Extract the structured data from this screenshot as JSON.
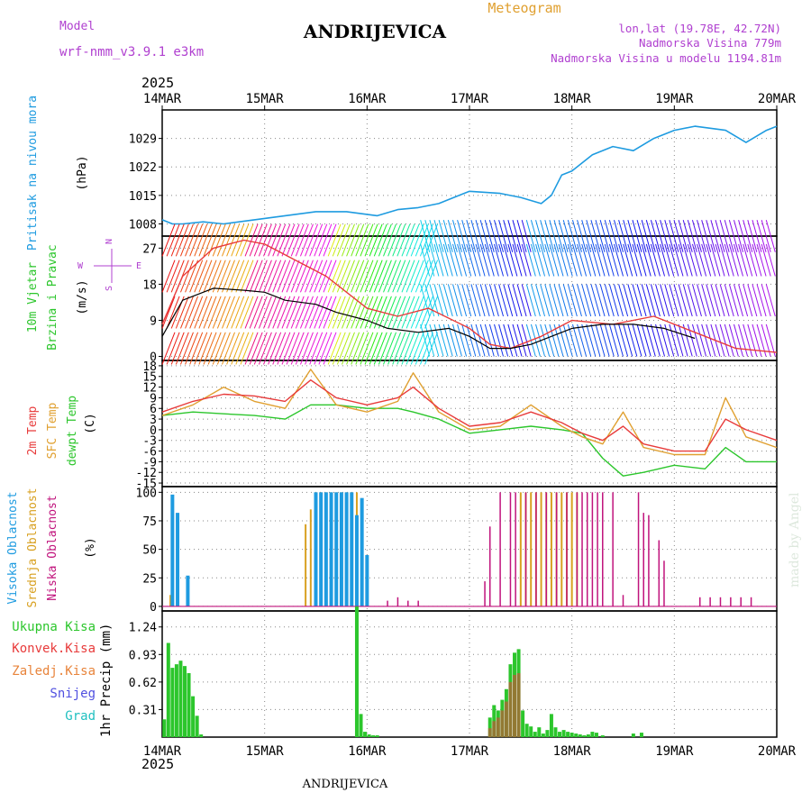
{
  "header": {
    "model_label": "Model",
    "model_name": "wrf-nmm_v3.9.1 e3km",
    "title": "ANDRIJEVICA",
    "meteogram": "Meteogram",
    "lonlat": "lon,lat (19.78E, 42.72N)",
    "elevation": "Nadmorska Visina 779m",
    "model_elevation": "Nadmorska Visina u modelu 1194.81m",
    "year": "2025",
    "footer_title": "ANDRIJEVICA",
    "watermark": "made by Angel"
  },
  "colors": {
    "pressure": "#1e9be0",
    "temp": "#e83b3b",
    "sfc": "#e0a030",
    "dew": "#2cc62c",
    "high": "#1e9be0",
    "mid": "#d8a020",
    "low": "#c0137c",
    "precip": "#2cc62c",
    "conv": "#e83b3b",
    "snow": "#5050e0",
    "grad": "#20c0c0",
    "purple": "#b040d0"
  },
  "time_axis": {
    "labels": [
      "14MAR",
      "15MAR",
      "16MAR",
      "17MAR",
      "18MAR",
      "19MAR",
      "20MAR"
    ]
  },
  "chart_data": [
    {
      "type": "line",
      "panel": "pressure",
      "ylabel": [
        "Pritisak na nivou mora",
        "(hPa)"
      ],
      "ylim": [
        1005,
        1036
      ],
      "yticks": [
        1008,
        1015,
        1022,
        1029
      ],
      "x_days": [
        0,
        0.1,
        0.2,
        0.4,
        0.6,
        0.9,
        1.2,
        1.5,
        1.8,
        2.1,
        2.3,
        2.5,
        2.7,
        2.9,
        3.0,
        3.3,
        3.5,
        3.7,
        3.8,
        3.9,
        4.0,
        4.2,
        4.4,
        4.6,
        4.8,
        5.0,
        5.2,
        5.5,
        5.7,
        5.9,
        6.0
      ],
      "values": [
        1009,
        1008,
        1008,
        1008.5,
        1008,
        1009,
        1010,
        1011,
        1011,
        1010,
        1011.5,
        1012,
        1013,
        1015,
        1016,
        1015.5,
        1014.5,
        1013,
        1015,
        1020,
        1021,
        1025,
        1027,
        1026,
        1029,
        1031,
        1032,
        1031,
        1028,
        1031,
        1032
      ]
    },
    {
      "type": "line",
      "panel": "wind",
      "ylabel": [
        "10m Vjetar",
        "Brzina i Pravac",
        "(m/s)"
      ],
      "ylim": [
        -1,
        30
      ],
      "yticks": [
        0,
        9,
        18,
        27
      ],
      "compass": [
        "N",
        "W",
        "E",
        "S"
      ],
      "series": [
        {
          "name": "speed",
          "x": [
            0,
            0.2,
            0.5,
            0.8,
            1.0,
            1.2,
            1.5,
            1.7,
            2.0,
            2.2,
            2.5,
            2.8,
            3.0,
            3.2,
            3.4,
            3.6,
            3.8,
            4.0,
            4.3,
            4.6,
            4.9,
            5.2
          ],
          "values": [
            5,
            14,
            17,
            16.5,
            16,
            14,
            13,
            11,
            9,
            7,
            6,
            7,
            5,
            2,
            2,
            3,
            5,
            7,
            8,
            8,
            7,
            4.5
          ]
        },
        {
          "name": "gust",
          "x": [
            0,
            0.2,
            0.5,
            0.8,
            1.0,
            1.3,
            1.6,
            2.0,
            2.3,
            2.6,
            3.0,
            3.2,
            3.4,
            3.7,
            4.0,
            4.4,
            4.8,
            5.2,
            5.6,
            6.0
          ],
          "values": [
            8,
            20,
            27,
            29,
            28,
            24,
            20,
            12,
            10,
            12,
            7,
            3,
            2,
            5,
            9,
            8,
            10,
            6,
            2,
            1
          ]
        }
      ]
    },
    {
      "type": "line",
      "panel": "temperature",
      "ylabel": [
        "2m Temp",
        "SFC Temp",
        "dewpt Temp",
        "(C)"
      ],
      "ylim": [
        -16,
        19.5
      ],
      "yticks": [
        18,
        15,
        12,
        9,
        6,
        3,
        0,
        -3,
        -6,
        -9,
        -12,
        -15
      ],
      "series": [
        {
          "name": "2m Temp",
          "x": [
            0,
            0.3,
            0.6,
            0.9,
            1.2,
            1.45,
            1.7,
            2.0,
            2.3,
            2.45,
            2.7,
            3.0,
            3.3,
            3.6,
            3.9,
            4.1,
            4.3,
            4.5,
            4.7,
            5.0,
            5.3,
            5.5,
            5.7,
            6.0
          ],
          "values": [
            5,
            8,
            10,
            9.5,
            8,
            14,
            9,
            7,
            9,
            12,
            6,
            1,
            2,
            5,
            2,
            -1,
            -3,
            1,
            -4,
            -6,
            -6,
            3,
            0,
            -3
          ]
        },
        {
          "name": "SFC Temp",
          "x": [
            0,
            0.3,
            0.6,
            0.9,
            1.2,
            1.45,
            1.7,
            2.0,
            2.3,
            2.45,
            2.7,
            3.0,
            3.3,
            3.6,
            3.9,
            4.1,
            4.3,
            4.5,
            4.7,
            5.0,
            5.3,
            5.5,
            5.7,
            6.0
          ],
          "values": [
            4,
            7,
            12,
            8,
            6,
            17,
            7,
            5,
            8,
            16,
            5,
            0,
            1,
            7,
            1,
            -2,
            -4,
            5,
            -5,
            -7,
            -7,
            9,
            -2,
            -5
          ]
        },
        {
          "name": "dewpt Temp",
          "x": [
            0,
            0.3,
            0.6,
            0.9,
            1.2,
            1.45,
            1.7,
            2.0,
            2.3,
            2.45,
            2.7,
            3.0,
            3.3,
            3.6,
            3.9,
            4.1,
            4.3,
            4.5,
            4.7,
            5.0,
            5.3,
            5.5,
            5.7,
            6.0
          ],
          "values": [
            4,
            5,
            4.5,
            4,
            3,
            7,
            7,
            6,
            6,
            5,
            3,
            -1,
            0,
            1,
            0,
            -1,
            -8,
            -13,
            -12,
            -10,
            -11,
            -5,
            -9,
            -9
          ]
        }
      ]
    },
    {
      "type": "bar",
      "panel": "clouds",
      "ylabel": [
        "Visoka Oblacnost",
        "Srednja Oblacnost",
        "Niska Oblacnost",
        "(%)"
      ],
      "ylim": [
        -4,
        105
      ],
      "yticks": [
        0,
        25,
        50,
        75,
        100
      ],
      "series": [
        {
          "name": "Visoka Oblacnost",
          "x": [
            0.1,
            0.15,
            0.25,
            1.5,
            1.55,
            1.6,
            1.65,
            1.7,
            1.75,
            1.8,
            1.85,
            1.9,
            1.95,
            2.0
          ],
          "values": [
            98,
            82,
            27,
            100,
            100,
            100,
            100,
            100,
            100,
            100,
            100,
            80,
            95,
            45
          ]
        },
        {
          "name": "Srednja Oblacnost",
          "x": [
            0.08,
            1.4,
            1.45,
            1.5,
            1.55,
            1.6,
            1.65,
            1.7,
            1.75,
            1.8,
            1.85,
            1.9,
            3.5,
            3.55,
            3.6,
            3.65,
            3.7,
            3.75,
            3.8,
            3.85,
            3.9,
            3.95,
            4.0,
            4.05
          ],
          "values": [
            10,
            72,
            85,
            100,
            100,
            100,
            100,
            100,
            100,
            100,
            100,
            100,
            100,
            100,
            100,
            100,
            100,
            100,
            100,
            100,
            100,
            100,
            100,
            100
          ]
        },
        {
          "name": "Niska Oblacnost",
          "x": [
            2.2,
            2.3,
            2.4,
            2.5,
            3.15,
            3.2,
            3.3,
            3.4,
            3.45,
            3.55,
            3.65,
            3.75,
            3.85,
            3.95,
            4.05,
            4.1,
            4.15,
            4.2,
            4.25,
            4.3,
            4.4,
            4.5,
            4.65,
            4.7,
            4.75,
            4.85,
            4.9,
            5.25,
            5.35,
            5.45,
            5.55,
            5.65,
            5.75
          ],
          "values": [
            5,
            8,
            5,
            5,
            22,
            70,
            100,
            100,
            100,
            100,
            100,
            100,
            100,
            100,
            100,
            100,
            100,
            100,
            100,
            100,
            100,
            10,
            100,
            82,
            80,
            58,
            40,
            8,
            8,
            8,
            8,
            8,
            8
          ]
        }
      ]
    },
    {
      "type": "bar",
      "panel": "precip",
      "ylabel": [
        "1hr Precip (mm)"
      ],
      "legend": [
        "Ukupna Kisa",
        "Konvek.Kisa",
        "Zaledj.Kisa",
        "Snijeg",
        "Grad"
      ],
      "ylim": [
        0,
        1.42
      ],
      "yticks": [
        0.31,
        0.62,
        0.93,
        1.24
      ],
      "series": [
        {
          "name": "Ukupna Kisa",
          "x": [
            0.02,
            0.06,
            0.1,
            0.14,
            0.18,
            0.22,
            0.26,
            0.3,
            0.34,
            0.38,
            1.9,
            1.94,
            1.98,
            2.02,
            2.06,
            2.1,
            3.2,
            3.24,
            3.28,
            3.32,
            3.36,
            3.4,
            3.44,
            3.48,
            3.52,
            3.56,
            3.6,
            3.64,
            3.68,
            3.72,
            3.76,
            3.8,
            3.84,
            3.88,
            3.92,
            3.96,
            4.0,
            4.04,
            4.08,
            4.12,
            4.16,
            4.2,
            4.24,
            4.3,
            4.6,
            4.68
          ],
          "values": [
            0.2,
            1.06,
            0.78,
            0.82,
            0.86,
            0.8,
            0.72,
            0.46,
            0.24,
            0.03,
            1.47,
            0.26,
            0.06,
            0.03,
            0.02,
            0.02,
            0.22,
            0.36,
            0.3,
            0.42,
            0.54,
            0.82,
            0.95,
            0.99,
            0.3,
            0.15,
            0.12,
            0.06,
            0.11,
            0.04,
            0.08,
            0.26,
            0.11,
            0.06,
            0.08,
            0.06,
            0.05,
            0.04,
            0.03,
            0.02,
            0.03,
            0.06,
            0.05,
            0.02,
            0.04,
            0.05
          ]
        },
        {
          "name": "Konvek.Kisa",
          "x": [
            3.2,
            3.24,
            3.28,
            3.32,
            3.36,
            3.4,
            3.44,
            3.48
          ],
          "values": [
            0.1,
            0.18,
            0.22,
            0.3,
            0.4,
            0.62,
            0.7,
            0.72
          ]
        }
      ]
    }
  ]
}
